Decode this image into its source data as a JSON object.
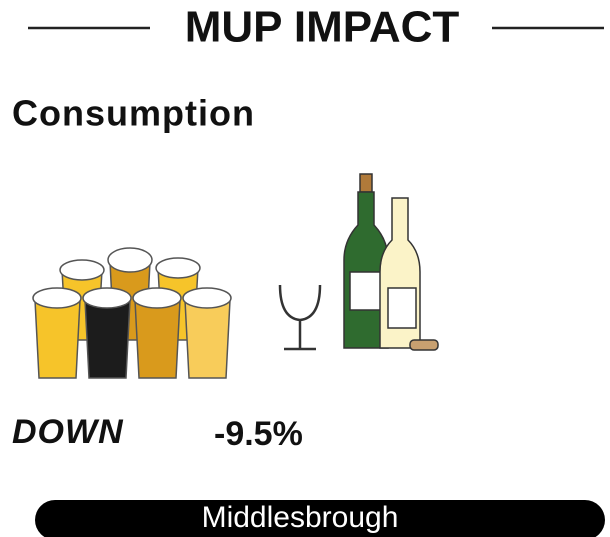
{
  "header": {
    "title": "MUP IMPACT"
  },
  "section": {
    "title": "Consumption",
    "direction": "DOWN",
    "change": "-9.5%"
  },
  "footer": {
    "place": "Middlesbrough"
  }
}
